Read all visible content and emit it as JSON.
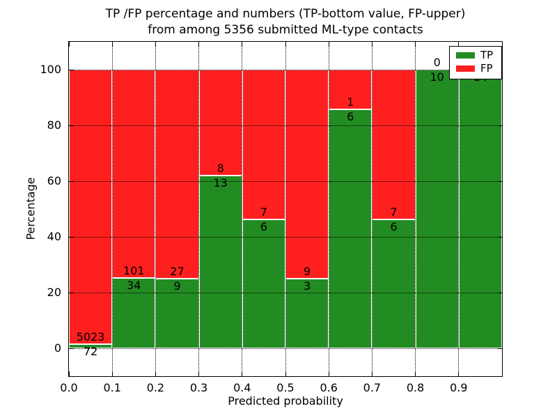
{
  "title": {
    "line1": "TP /FP percentage and numbers (TP-bottom value, FP-upper)",
    "line2": "from among 5356 submitted ML-type contacts"
  },
  "axes": {
    "xlabel": "Predicted probability",
    "ylabel": "Percentage",
    "yticks": [
      {
        "label": "0",
        "value": 0
      },
      {
        "label": "20",
        "value": 20
      },
      {
        "label": "40",
        "value": 40
      },
      {
        "label": "60",
        "value": 60
      },
      {
        "label": "80",
        "value": 80
      },
      {
        "label": "100",
        "value": 100
      }
    ],
    "xticks": [
      "0.0",
      "0.1",
      "0.2",
      "0.3",
      "0.4",
      "0.5",
      "0.6",
      "0.7",
      "0.8",
      "0.9"
    ]
  },
  "legend": {
    "items": [
      {
        "label": "TP",
        "color": "#228b22"
      },
      {
        "label": "FP",
        "color": "#ff1f1f"
      }
    ]
  },
  "chart_data": {
    "type": "bar",
    "stacked": true,
    "normalized_to_percent": true,
    "title": "TP /FP percentage and numbers (TP-bottom value, FP-upper) from among 5356 submitted ML-type contacts",
    "xlabel": "Predicted probability",
    "ylabel": "Percentage",
    "categories": [
      "0.0-0.1",
      "0.1-0.2",
      "0.2-0.3",
      "0.3-0.4",
      "0.4-0.5",
      "0.5-0.6",
      "0.6-0.7",
      "0.7-0.8",
      "0.8-0.9",
      "0.9-1.0"
    ],
    "bin_edges": [
      0.0,
      0.1,
      0.2,
      0.3,
      0.4,
      0.5,
      0.6,
      0.7,
      0.8,
      0.9,
      1.0
    ],
    "series": [
      {
        "name": "TP",
        "color": "#228b22",
        "counts": [
          72,
          34,
          9,
          13,
          6,
          3,
          6,
          6,
          10,
          14
        ]
      },
      {
        "name": "FP",
        "color": "#ff1f1f",
        "counts": [
          5023,
          101,
          27,
          8,
          7,
          9,
          1,
          7,
          0,
          0
        ]
      }
    ],
    "tp_percent_of_bin": [
      1.4,
      25.2,
      25.0,
      61.9,
      46.2,
      25.0,
      85.7,
      46.2,
      100.0,
      100.0
    ],
    "total_contacts": 5356,
    "ylim": [
      -10,
      110
    ],
    "xlim": [
      0.0,
      1.0
    ],
    "grid": true,
    "grid_linestyle": "dotted",
    "legend_position": "upper right",
    "bar_edge_color": "#ffffff"
  }
}
